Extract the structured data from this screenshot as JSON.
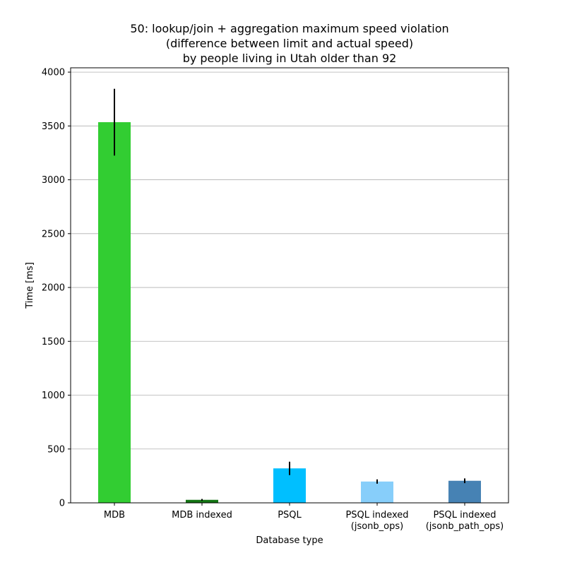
{
  "chart_data": {
    "type": "bar",
    "title_lines": [
      "50: lookup/join + aggregation maximum speed violation",
      "(difference between limit and actual speed)",
      "by people living in Utah older than 92"
    ],
    "xlabel": "Database type",
    "ylabel": "Time [ms]",
    "ylim": [
      0,
      4040
    ],
    "yticks": [
      0,
      500,
      1000,
      1500,
      2000,
      2500,
      3000,
      3500,
      4000
    ],
    "grid": "y",
    "categories": [
      [
        "MDB"
      ],
      [
        "MDB indexed"
      ],
      [
        "PSQL"
      ],
      [
        "PSQL indexed",
        "(jsonb_ops)"
      ],
      [
        "PSQL indexed",
        "(jsonb_path_ops)"
      ]
    ],
    "values": [
      3535,
      28,
      320,
      198,
      205
    ],
    "errors": [
      310,
      8,
      62,
      20,
      22
    ],
    "colors": [
      "#32cd32",
      "#137413",
      "#00bfff",
      "#87cefa",
      "#4682b4"
    ]
  }
}
